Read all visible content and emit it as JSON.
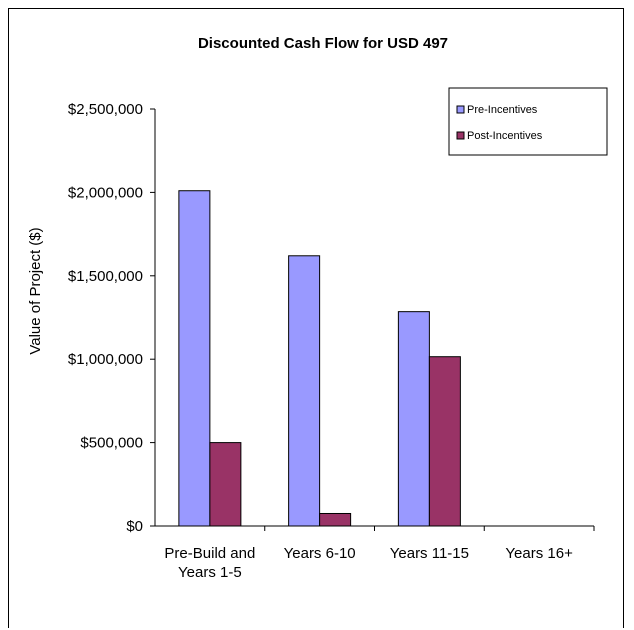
{
  "chart_data": {
    "type": "bar",
    "title": "Discounted Cash Flow for USD 497",
    "xlabel": "",
    "ylabel": "Value of Project ($)",
    "categories": [
      [
        "Pre-Build and",
        "Years 1-5"
      ],
      [
        "Years 6-10"
      ],
      [
        "Years 11-15"
      ],
      [
        "Years 16+"
      ]
    ],
    "series": [
      {
        "name": "Pre-Incentives",
        "color": "#9999ff",
        "values": [
          2010000,
          1620000,
          1285000,
          0
        ]
      },
      {
        "name": "Post-Incentives",
        "color": "#993366",
        "values": [
          500000,
          75000,
          1015000,
          0
        ]
      }
    ],
    "ylim": [
      0,
      2500000
    ],
    "yticks": [
      0,
      500000,
      1000000,
      1500000,
      2000000,
      2500000
    ],
    "ytick_labels": [
      "$0",
      "$500,000",
      "$1,000,000",
      "$1,500,000",
      "$2,000,000",
      "$2,500,000"
    ],
    "grid": false,
    "legend_position": "top-right"
  }
}
